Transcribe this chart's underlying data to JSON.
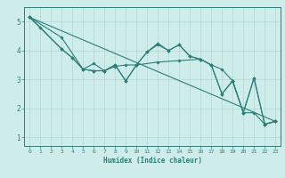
{
  "xlabel": "Humidex (Indice chaleur)",
  "bg_color": "#ceecea",
  "line_color": "#2d7d78",
  "grid_color": "#b0d8d4",
  "xlim": [
    -0.5,
    23.5
  ],
  "ylim": [
    0.7,
    5.5
  ],
  "xticks": [
    0,
    1,
    2,
    3,
    4,
    5,
    6,
    7,
    8,
    9,
    10,
    11,
    12,
    13,
    14,
    15,
    16,
    17,
    18,
    19,
    20,
    21,
    22,
    23
  ],
  "yticks": [
    1,
    2,
    3,
    4,
    5
  ],
  "series": [
    {
      "x": [
        0,
        1,
        3,
        4,
        5,
        6,
        7,
        8,
        9,
        10,
        11,
        12,
        13,
        14,
        15,
        16,
        17,
        18,
        19,
        20,
        21,
        22,
        23
      ],
      "y": [
        5.15,
        4.8,
        4.05,
        3.75,
        3.35,
        3.3,
        3.3,
        3.5,
        2.95,
        3.5,
        3.95,
        4.2,
        4.0,
        4.2,
        3.8,
        3.7,
        3.5,
        2.5,
        2.95,
        1.85,
        1.85,
        1.45,
        1.55
      ]
    },
    {
      "x": [
        0,
        3,
        5,
        6,
        7,
        8,
        9,
        10,
        12,
        14,
        16,
        17,
        18,
        19,
        20,
        21,
        22,
        23
      ],
      "y": [
        5.15,
        4.45,
        3.35,
        3.55,
        3.3,
        3.45,
        3.5,
        3.5,
        3.6,
        3.65,
        3.7,
        3.5,
        3.35,
        2.95,
        1.85,
        3.05,
        1.45,
        1.55
      ]
    },
    {
      "x": [
        0,
        3,
        4,
        5,
        6,
        7,
        8,
        9,
        10,
        11,
        12,
        13,
        14,
        15,
        16,
        17,
        18,
        19,
        20,
        21,
        22,
        23
      ],
      "y": [
        5.15,
        4.05,
        3.75,
        3.35,
        3.3,
        3.3,
        3.5,
        2.95,
        3.5,
        3.95,
        4.25,
        4.0,
        4.2,
        3.8,
        3.7,
        3.5,
        2.5,
        2.95,
        1.85,
        3.05,
        1.45,
        1.55
      ]
    },
    {
      "x": [
        0,
        23
      ],
      "y": [
        5.15,
        1.55
      ]
    }
  ]
}
